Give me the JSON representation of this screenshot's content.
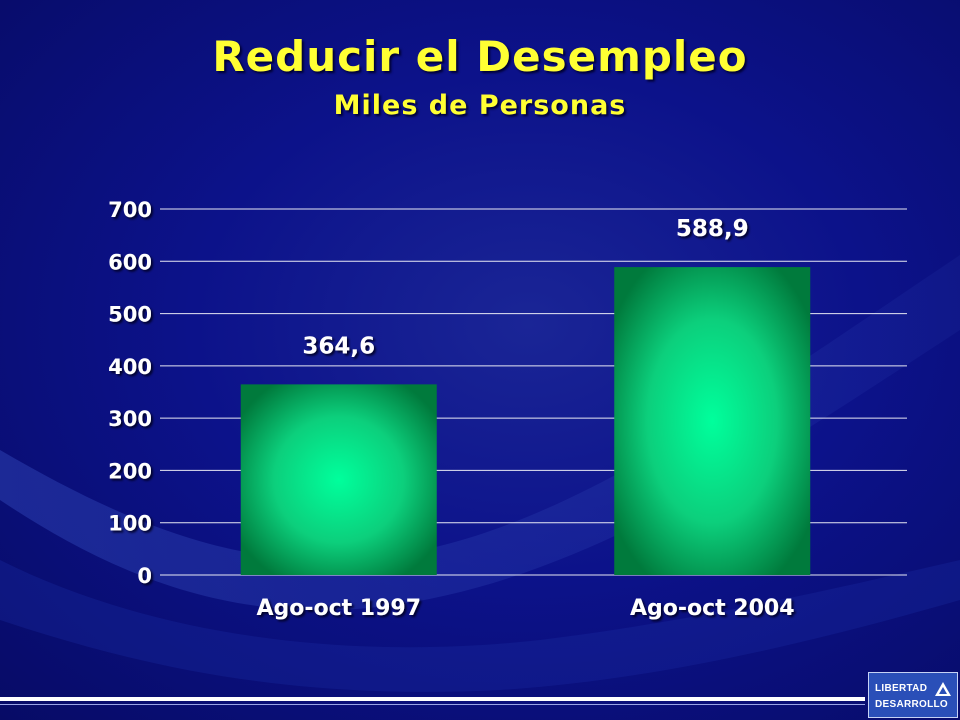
{
  "slide": {
    "title": "Reducir el Desempleo",
    "subtitle": "Miles de Personas"
  },
  "logo": {
    "line1": "LIBERTAD",
    "line2": "DESARROLLO"
  },
  "colors": {
    "background": "#0c128a",
    "title": "#ffff33",
    "bar_center": "#00ff9c",
    "bar_edge": "#007a3c",
    "axis_text": "#ffffff"
  },
  "chart_data": {
    "type": "bar",
    "categories": [
      "Ago-oct 1997",
      "Ago-oct 2004"
    ],
    "values": [
      364.6,
      588.9
    ],
    "data_labels": [
      "364,6",
      "588,9"
    ],
    "title": "Reducir el Desempleo",
    "subtitle": "Miles de Personas",
    "xlabel": "",
    "ylabel": "",
    "ylim": [
      0,
      700
    ],
    "yticks": [
      0,
      100,
      200,
      300,
      400,
      500,
      600,
      700
    ],
    "grid": true,
    "legend": "none"
  }
}
